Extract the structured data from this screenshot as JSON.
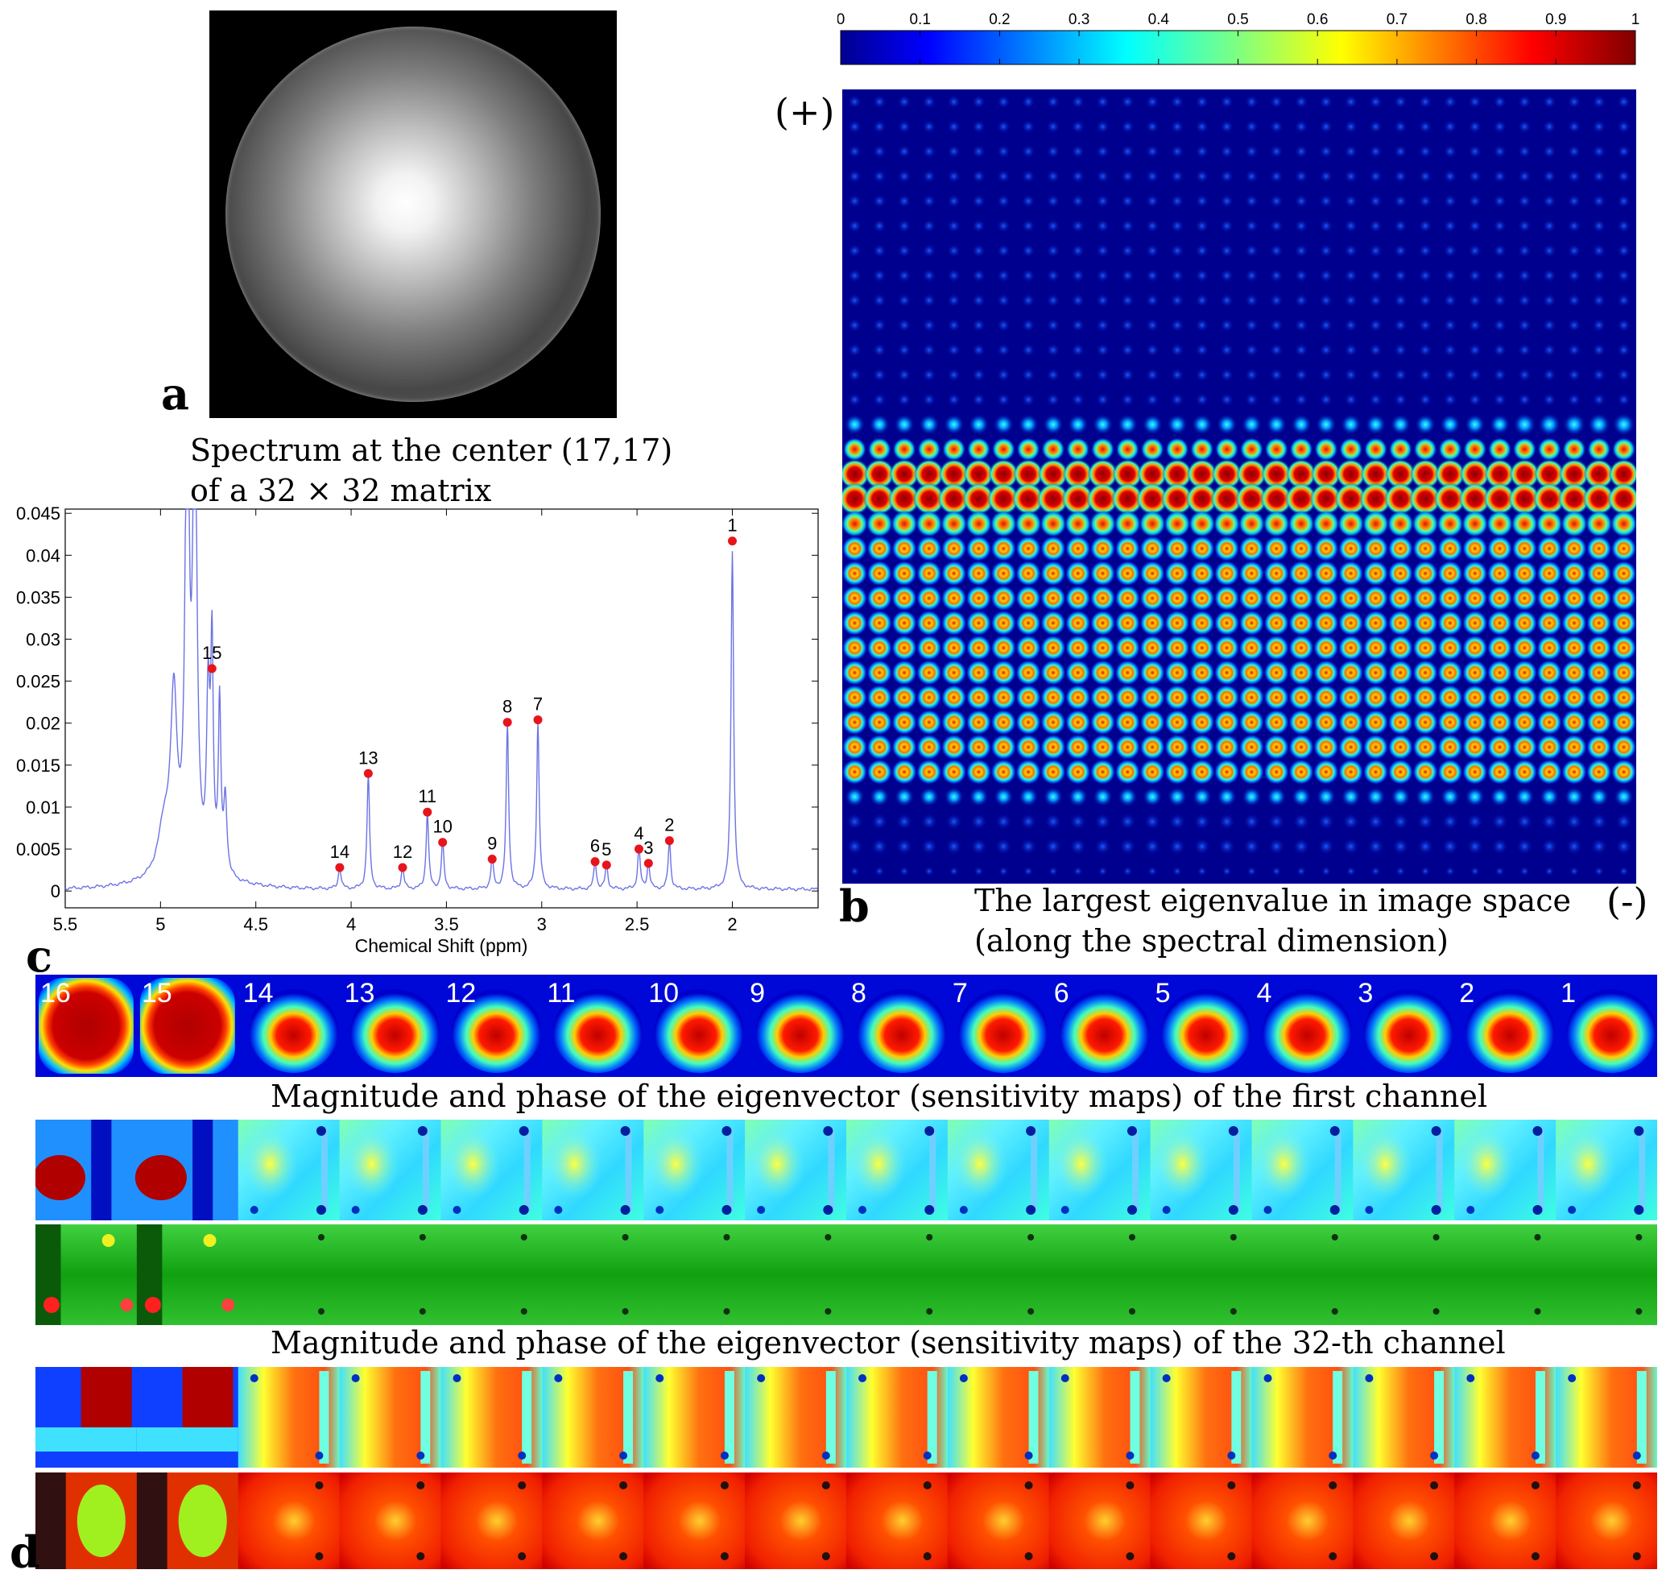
{
  "panel_letters": {
    "a": "a",
    "b": "b",
    "c": "c",
    "d": "d"
  },
  "spectrum_caption": {
    "line1": "Spectrum at the center (17,17)",
    "line2": "of a 32 × 32 matrix"
  },
  "eigen_caption": {
    "line1": "The largest eigenvalue in image space",
    "line2": "(along the spectral dimension)"
  },
  "signs": {
    "plus": "(+)",
    "minus": "(-)"
  },
  "colorbar": {
    "ticks": [
      "0",
      "0.1",
      "0.2",
      "0.3",
      "0.4",
      "0.5",
      "0.6",
      "0.7",
      "0.8",
      "0.9",
      "1"
    ]
  },
  "strip_captions": {
    "first": "Magnitude and phase of the eigenvector (sensitivity maps) of the first channel",
    "last": "Magnitude and phase of the eigenvector (sensitivity maps) of the 32-th channel"
  },
  "strip_labels": [
    "16",
    "15",
    "14",
    "13",
    "12",
    "11",
    "10",
    "9",
    "8",
    "7",
    "6",
    "5",
    "4",
    "3",
    "2",
    "1"
  ],
  "chart_data": {
    "type": "line",
    "title": "Spectrum at the center (17,17) of a 32 × 32 matrix",
    "xlabel": "Chemical Shift (ppm)",
    "ylabel": "",
    "xlim": [
      5.5,
      1.55
    ],
    "ylim": [
      -0.002,
      0.0455
    ],
    "x_reversed": true,
    "xticks": [
      "5.5",
      "5",
      "4.5",
      "4",
      "3.5",
      "3",
      "2.5",
      "2"
    ],
    "xtick_values": [
      5.5,
      5,
      4.5,
      4,
      3.5,
      3,
      2.5,
      2
    ],
    "yticks": [
      "0",
      "0.005",
      "0.01",
      "0.015",
      "0.02",
      "0.025",
      "0.03",
      "0.035",
      "0.04",
      "0.045"
    ],
    "ytick_values": [
      0,
      0.005,
      0.01,
      0.015,
      0.02,
      0.025,
      0.03,
      0.035,
      0.04,
      0.045
    ],
    "line_color": "#6b73e6",
    "marker_color": "#e8141c",
    "series": [
      {
        "name": "spectrum",
        "values": []
      }
    ],
    "peaks": [
      {
        "label": "1",
        "x": 2.0,
        "y": 0.0417
      },
      {
        "label": "2",
        "x": 2.33,
        "y": 0.006
      },
      {
        "label": "3",
        "x": 2.44,
        "y": 0.0033
      },
      {
        "label": "4",
        "x": 2.49,
        "y": 0.005
      },
      {
        "label": "5",
        "x": 2.66,
        "y": 0.0031
      },
      {
        "label": "6",
        "x": 2.72,
        "y": 0.0035
      },
      {
        "label": "7",
        "x": 3.02,
        "y": 0.0204
      },
      {
        "label": "8",
        "x": 3.18,
        "y": 0.0201
      },
      {
        "label": "9",
        "x": 3.26,
        "y": 0.0038
      },
      {
        "label": "10",
        "x": 3.52,
        "y": 0.0058
      },
      {
        "label": "11",
        "x": 3.6,
        "y": 0.0094
      },
      {
        "label": "12",
        "x": 3.73,
        "y": 0.0028
      },
      {
        "label": "13",
        "x": 3.91,
        "y": 0.014
      },
      {
        "label": "14",
        "x": 4.06,
        "y": 0.0028
      },
      {
        "label": "15",
        "x": 4.73,
        "y": 0.0265
      }
    ]
  }
}
